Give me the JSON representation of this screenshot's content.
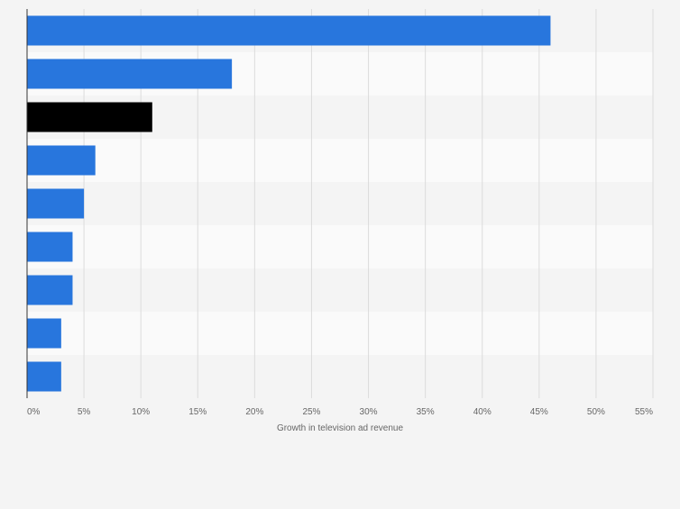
{
  "chart_data": {
    "type": "bar",
    "orientation": "horizontal",
    "categories": [
      "",
      "",
      "",
      "",
      "",
      "",
      "",
      "",
      ""
    ],
    "values": [
      46,
      18,
      11,
      6,
      5,
      4,
      4,
      3,
      3
    ],
    "highlight_index": 2,
    "xlabel": "Growth in television ad revenue",
    "ylabel": "",
    "xlim": [
      0,
      55
    ],
    "xticks": [
      0,
      5,
      10,
      15,
      20,
      25,
      30,
      35,
      40,
      45,
      50,
      55
    ],
    "tick_suffix": "%",
    "grid": true,
    "legend": "none",
    "colors": {
      "bar": "#2876dd",
      "highlight": "#000000",
      "band_dark": "#f4f4f4",
      "band_light": "#fafafa",
      "grid": "#dcdcdc",
      "axis": "#333333",
      "text": "#666666"
    }
  }
}
